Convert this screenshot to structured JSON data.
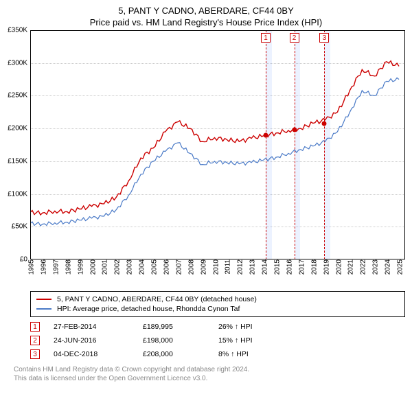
{
  "title": {
    "line1": "5, PANT Y CADNO, ABERDARE, CF44 0BY",
    "line2": "Price paid vs. HM Land Registry's House Price Index (HPI)"
  },
  "chart": {
    "type": "line",
    "x_range": [
      1995,
      2025.5
    ],
    "y_range": [
      0,
      350000
    ],
    "y_ticks": [
      0,
      50000,
      100000,
      150000,
      200000,
      250000,
      300000,
      350000
    ],
    "y_tick_labels": [
      "£0",
      "£50K",
      "£100K",
      "£150K",
      "£200K",
      "£250K",
      "£300K",
      "£350K"
    ],
    "x_ticks": [
      1995,
      1996,
      1997,
      1998,
      1999,
      2000,
      2001,
      2002,
      2003,
      2004,
      2005,
      2006,
      2007,
      2008,
      2009,
      2010,
      2011,
      2012,
      2013,
      2014,
      2015,
      2016,
      2017,
      2018,
      2019,
      2020,
      2021,
      2022,
      2023,
      2024,
      2025
    ],
    "background": "#ffffff",
    "grid_color": "#cccccc",
    "axes_color": "#000000",
    "series": [
      {
        "name": "property",
        "color": "#cc0000",
        "width": 1.4,
        "points": [
          [
            1995,
            72000
          ],
          [
            1996,
            71000
          ],
          [
            1997,
            74000
          ],
          [
            1998,
            73000
          ],
          [
            1999,
            77000
          ],
          [
            2000,
            81000
          ],
          [
            2001,
            85000
          ],
          [
            2002,
            95000
          ],
          [
            2003,
            120000
          ],
          [
            2004,
            155000
          ],
          [
            2005,
            170000
          ],
          [
            2006,
            195000
          ],
          [
            2007,
            210000
          ],
          [
            2008,
            200000
          ],
          [
            2009,
            180000
          ],
          [
            2010,
            186000
          ],
          [
            2011,
            183000
          ],
          [
            2012,
            180000
          ],
          [
            2013,
            185000
          ],
          [
            2014,
            189000
          ],
          [
            2015,
            193000
          ],
          [
            2016,
            197000
          ],
          [
            2017,
            200000
          ],
          [
            2018,
            208000
          ],
          [
            2019,
            213000
          ],
          [
            2020,
            225000
          ],
          [
            2021,
            258000
          ],
          [
            2022,
            290000
          ],
          [
            2023,
            280000
          ],
          [
            2024,
            302000
          ],
          [
            2025,
            295000
          ]
        ]
      },
      {
        "name": "hpi",
        "color": "#4a7ac7",
        "width": 1.2,
        "points": [
          [
            1995,
            55000
          ],
          [
            1996,
            54000
          ],
          [
            1997,
            56000
          ],
          [
            1998,
            57000
          ],
          [
            1999,
            60000
          ],
          [
            2000,
            63000
          ],
          [
            2001,
            66000
          ],
          [
            2002,
            76000
          ],
          [
            2003,
            98000
          ],
          [
            2004,
            130000
          ],
          [
            2005,
            150000
          ],
          [
            2006,
            165000
          ],
          [
            2007,
            178000
          ],
          [
            2008,
            162000
          ],
          [
            2009,
            145000
          ],
          [
            2010,
            150000
          ],
          [
            2011,
            148000
          ],
          [
            2012,
            146000
          ],
          [
            2013,
            148000
          ],
          [
            2014,
            152000
          ],
          [
            2015,
            156000
          ],
          [
            2016,
            162000
          ],
          [
            2017,
            168000
          ],
          [
            2018,
            173000
          ],
          [
            2019,
            180000
          ],
          [
            2020,
            195000
          ],
          [
            2021,
            225000
          ],
          [
            2022,
            258000
          ],
          [
            2023,
            250000
          ],
          [
            2024,
            272000
          ],
          [
            2025,
            275000
          ]
        ]
      }
    ],
    "markers": [
      {
        "n": "1",
        "x": 2014.16,
        "y": 189995,
        "shade_to": 2014.66
      },
      {
        "n": "2",
        "x": 2016.48,
        "y": 198000,
        "shade_to": 2016.98
      },
      {
        "n": "3",
        "x": 2018.93,
        "y": 208000,
        "shade_to": 2019.43
      }
    ]
  },
  "legend": {
    "items": [
      {
        "color": "#cc0000",
        "label": "5, PANT Y CADNO, ABERDARE, CF44 0BY (detached house)"
      },
      {
        "color": "#4a7ac7",
        "label": "HPI: Average price, detached house, Rhondda Cynon Taf"
      }
    ]
  },
  "transactions": [
    {
      "n": "1",
      "date": "27-FEB-2014",
      "price": "£189,995",
      "delta": "26% ↑ HPI"
    },
    {
      "n": "2",
      "date": "24-JUN-2016",
      "price": "£198,000",
      "delta": "15% ↑ HPI"
    },
    {
      "n": "3",
      "date": "04-DEC-2018",
      "price": "£208,000",
      "delta": "8% ↑ HPI"
    }
  ],
  "footer": {
    "line1": "Contains HM Land Registry data © Crown copyright and database right 2024.",
    "line2": "This data is licensed under the Open Government Licence v3.0."
  }
}
